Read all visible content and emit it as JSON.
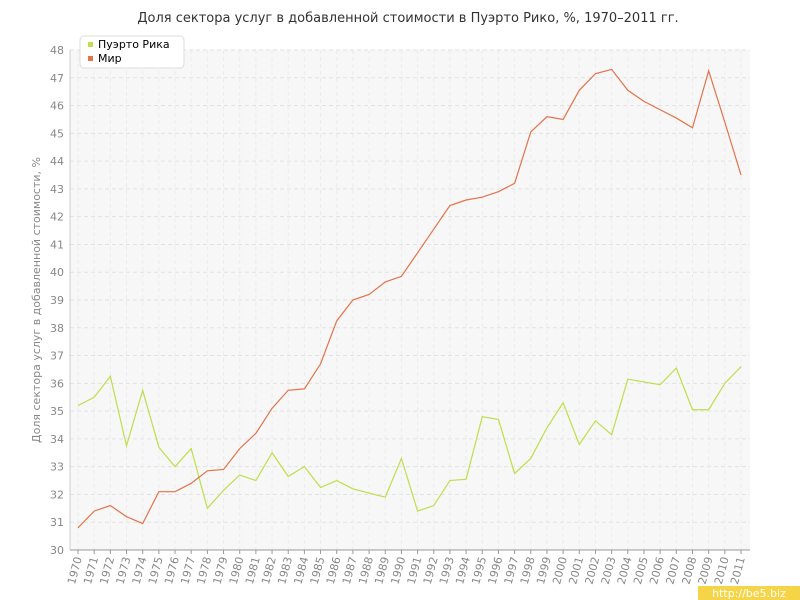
{
  "chart_data": {
    "type": "line",
    "title": "Доля сектора услуг в добавленной стоимости в Пуэрто Рико, %, 1970–2011 гг.",
    "y_label": "Доля сектора услуг в добавленной стоимости, %",
    "watermark": "http://be5.biz",
    "categories": [
      "1970",
      "1971",
      "1972",
      "1973",
      "1974",
      "1975",
      "1976",
      "1977",
      "1978",
      "1979",
      "1980",
      "1981",
      "1982",
      "1983",
      "1984",
      "1985",
      "1986",
      "1987",
      "1988",
      "1989",
      "1990",
      "1991",
      "1992",
      "1993",
      "1994",
      "1995",
      "1996",
      "1997",
      "1998",
      "1999",
      "2000",
      "2001",
      "2002",
      "2003",
      "2004",
      "2005",
      "2006",
      "2007",
      "2008",
      "2009",
      "2010",
      "2011"
    ],
    "series": [
      {
        "name": "Пуэрто Рика",
        "color": "#bddf4a",
        "values": [
          35.2,
          35.5,
          36.25,
          33.75,
          35.75,
          33.7,
          33.0,
          33.65,
          31.5,
          32.15,
          32.7,
          32.5,
          33.5,
          32.65,
          33.0,
          32.25,
          32.5,
          32.2,
          32.05,
          31.9,
          33.3,
          31.4,
          31.6,
          32.5,
          32.55,
          34.8,
          34.7,
          32.75,
          33.3,
          34.4,
          35.3,
          33.8,
          34.65,
          34.15,
          36.15,
          36.05,
          35.95,
          36.55,
          35.05,
          35.05,
          36.0,
          36.6
        ]
      },
      {
        "name": "Мир",
        "color": "#e2734a",
        "values": [
          30.8,
          31.4,
          31.6,
          31.2,
          30.95,
          32.1,
          32.1,
          32.4,
          32.85,
          32.9,
          33.65,
          34.2,
          35.1,
          35.75,
          35.8,
          36.7,
          38.25,
          39.0,
          39.2,
          39.65,
          39.85,
          40.7,
          41.55,
          42.4,
          42.6,
          42.7,
          42.9,
          43.2,
          45.05,
          45.6,
          45.5,
          46.55,
          47.15,
          47.3,
          46.55,
          46.15,
          45.85,
          45.55,
          45.2,
          47.25,
          45.4,
          43.5
        ]
      }
    ],
    "ylim": [
      30,
      48
    ],
    "yticks": [
      30,
      31,
      32,
      33,
      34,
      35,
      36,
      37,
      38,
      39,
      40,
      41,
      42,
      43,
      44,
      45,
      46,
      47,
      48
    ],
    "grid": true,
    "legend": "top-left"
  }
}
